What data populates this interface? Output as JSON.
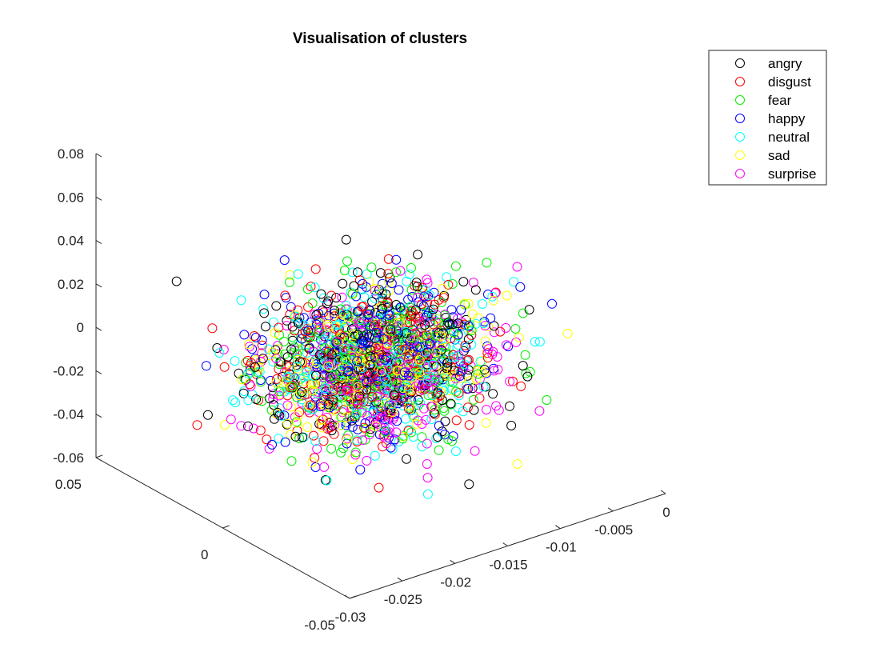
{
  "chart_data": {
    "type": "scatter",
    "title": "Visualisation of clusters",
    "xlabel": "",
    "ylabel": "",
    "zlabel": "",
    "legend_position": "top-right",
    "grid": false,
    "x_axis": {
      "range": [
        -0.03,
        0
      ],
      "ticks": [
        -0.03,
        -0.025,
        -0.02,
        -0.015,
        -0.01,
        -0.005,
        0
      ],
      "tick_labels": [
        "-0.03",
        "-0.025",
        "-0.02",
        "-0.015",
        "-0.01",
        "-0.005",
        "0"
      ]
    },
    "y_axis": {
      "range": [
        -0.05,
        0.05
      ],
      "ticks": [
        -0.05,
        0,
        0.05
      ],
      "tick_labels": [
        "-0.05",
        "0",
        "0.05"
      ]
    },
    "z_axis": {
      "range": [
        -0.06,
        0.08
      ],
      "ticks": [
        -0.06,
        -0.04,
        -0.02,
        0,
        0.02,
        0.04,
        0.06,
        0.08
      ],
      "tick_labels": [
        "-0.06",
        "-0.04",
        "-0.02",
        "0",
        "0.02",
        "0.04",
        "0.06",
        "0.08"
      ]
    },
    "series": [
      {
        "name": "angry",
        "color": "#000000",
        "count": 260,
        "center": [
          -0.0155,
          0.002,
          -0.008
        ],
        "spread": [
          0.0048,
          0.013,
          0.0155
        ]
      },
      {
        "name": "disgust",
        "color": "#ff0000",
        "count": 260,
        "center": [
          -0.0155,
          0.0,
          -0.007
        ],
        "spread": [
          0.0046,
          0.012,
          0.0145
        ]
      },
      {
        "name": "fear",
        "color": "#00ee00",
        "count": 260,
        "center": [
          -0.0155,
          0.0,
          -0.007
        ],
        "spread": [
          0.0045,
          0.012,
          0.0145
        ]
      },
      {
        "name": "happy",
        "color": "#0000ff",
        "count": 260,
        "center": [
          -0.0152,
          0.001,
          -0.006
        ],
        "spread": [
          0.0045,
          0.012,
          0.015
        ]
      },
      {
        "name": "neutral",
        "color": "#00ffff",
        "count": 260,
        "center": [
          -0.0152,
          0.0,
          -0.008
        ],
        "spread": [
          0.0046,
          0.012,
          0.015
        ]
      },
      {
        "name": "sad",
        "color": "#ffff00",
        "count": 260,
        "center": [
          -0.0155,
          0.0,
          -0.007
        ],
        "spread": [
          0.0045,
          0.012,
          0.0145
        ]
      },
      {
        "name": "surprise",
        "color": "#ff00ff",
        "count": 260,
        "center": [
          -0.015,
          0.0,
          -0.015
        ],
        "spread": [
          0.0045,
          0.012,
          0.014
        ]
      }
    ]
  }
}
